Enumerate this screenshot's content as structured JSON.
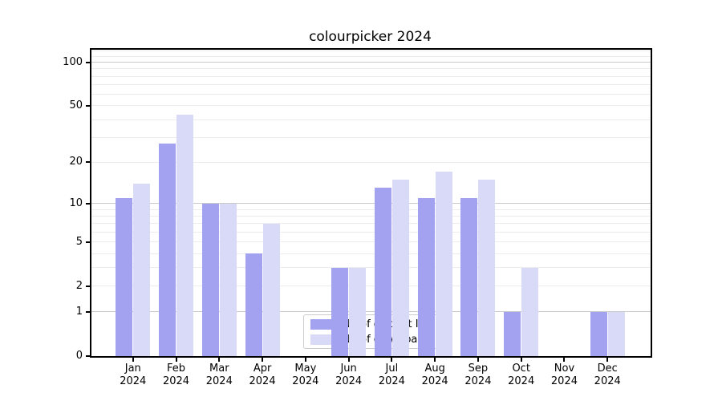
{
  "title": "colourpicker 2024",
  "chart_data": {
    "type": "bar",
    "title": "colourpicker 2024",
    "xlabel": "",
    "ylabel": "",
    "categories": [
      "Jan 2024",
      "Feb 2024",
      "Mar 2024",
      "Apr 2024",
      "May 2024",
      "Jun 2024",
      "Jul 2024",
      "Aug 2024",
      "Sep 2024",
      "Oct 2024",
      "Nov 2024",
      "Dec 2024"
    ],
    "series": [
      {
        "name": "Nb of distinct IPs",
        "color": "#a2a2f0",
        "values": [
          11,
          27,
          10,
          4,
          0,
          3,
          13,
          11,
          11,
          1,
          0,
          1
        ]
      },
      {
        "name": "Nb of downloads",
        "color": "#d9d9f8",
        "values": [
          14,
          43,
          10,
          7,
          0,
          3,
          15,
          17,
          15,
          3,
          0,
          1
        ]
      }
    ],
    "yscale": "log1p",
    "ylim": [
      0,
      122
    ],
    "ytick_values": [
      0,
      1,
      2,
      5,
      10,
      20,
      50,
      100
    ],
    "ytick_labels": [
      "0",
      "1",
      "2",
      "5",
      "10",
      "20",
      "50",
      "100"
    ],
    "grid": "both",
    "legend_position": "inside lower-center",
    "colors": {
      "major_gridline": "#c9c9c9",
      "minor_gridline": "#ececec",
      "axis": "#000000",
      "background": "#ffffff"
    }
  }
}
